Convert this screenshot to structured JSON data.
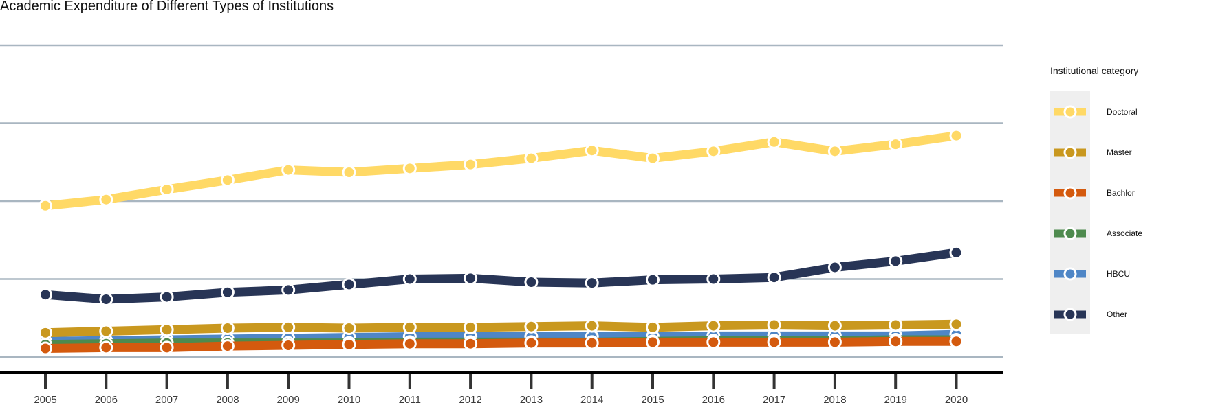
{
  "chart_data": {
    "type": "line",
    "title": "Academic Expenditure of Different Types of Institutions",
    "xlabel": "",
    "ylabel": "",
    "x": [
      2005,
      2006,
      2007,
      2008,
      2009,
      2010,
      2011,
      2012,
      2013,
      2014,
      2015,
      2016,
      2017,
      2018,
      2019,
      2020
    ],
    "ylim": [
      0,
      4
    ],
    "y_gridlines": [
      0,
      1,
      2,
      3,
      4
    ],
    "y_tick_labels_shown": false,
    "legend": {
      "title": "Institutional category",
      "position": "right"
    },
    "series": [
      {
        "name": "Doctoral",
        "color": "#FFD966",
        "values": [
          1.94,
          2.02,
          2.15,
          2.27,
          2.4,
          2.37,
          2.42,
          2.47,
          2.55,
          2.65,
          2.55,
          2.64,
          2.76,
          2.64,
          2.73,
          2.84
        ]
      },
      {
        "name": "Master",
        "color": "#C9981F",
        "values": [
          0.31,
          0.33,
          0.35,
          0.37,
          0.38,
          0.37,
          0.38,
          0.38,
          0.39,
          0.4,
          0.38,
          0.4,
          0.41,
          0.4,
          0.41,
          0.42
        ]
      },
      {
        "name": "Bachlor",
        "color": "#D45A0E",
        "values": [
          0.11,
          0.12,
          0.12,
          0.14,
          0.15,
          0.16,
          0.17,
          0.17,
          0.18,
          0.18,
          0.19,
          0.19,
          0.19,
          0.19,
          0.2,
          0.2
        ]
      },
      {
        "name": "Associate",
        "color": "#4E8A4E",
        "values": [
          0.16,
          0.17,
          0.18,
          0.18,
          0.18,
          0.18,
          0.19,
          0.19,
          0.19,
          0.19,
          0.2,
          0.21,
          0.21,
          0.21,
          0.22,
          0.22
        ]
      },
      {
        "name": "HBCU",
        "color": "#4F86C6",
        "values": [
          0.2,
          0.21,
          0.22,
          0.23,
          0.24,
          0.25,
          0.26,
          0.26,
          0.26,
          0.26,
          0.26,
          0.27,
          0.27,
          0.27,
          0.27,
          0.29
        ]
      },
      {
        "name": "Other",
        "color": "#283556",
        "values": [
          0.8,
          0.74,
          0.77,
          0.83,
          0.86,
          0.93,
          1.0,
          1.01,
          0.96,
          0.95,
          0.99,
          1.0,
          1.02,
          1.15,
          1.23,
          1.34
        ]
      }
    ],
    "draw_order": [
      "HBCU",
      "Associate",
      "Bachlor",
      "Master",
      "Other",
      "Doctoral"
    ]
  }
}
